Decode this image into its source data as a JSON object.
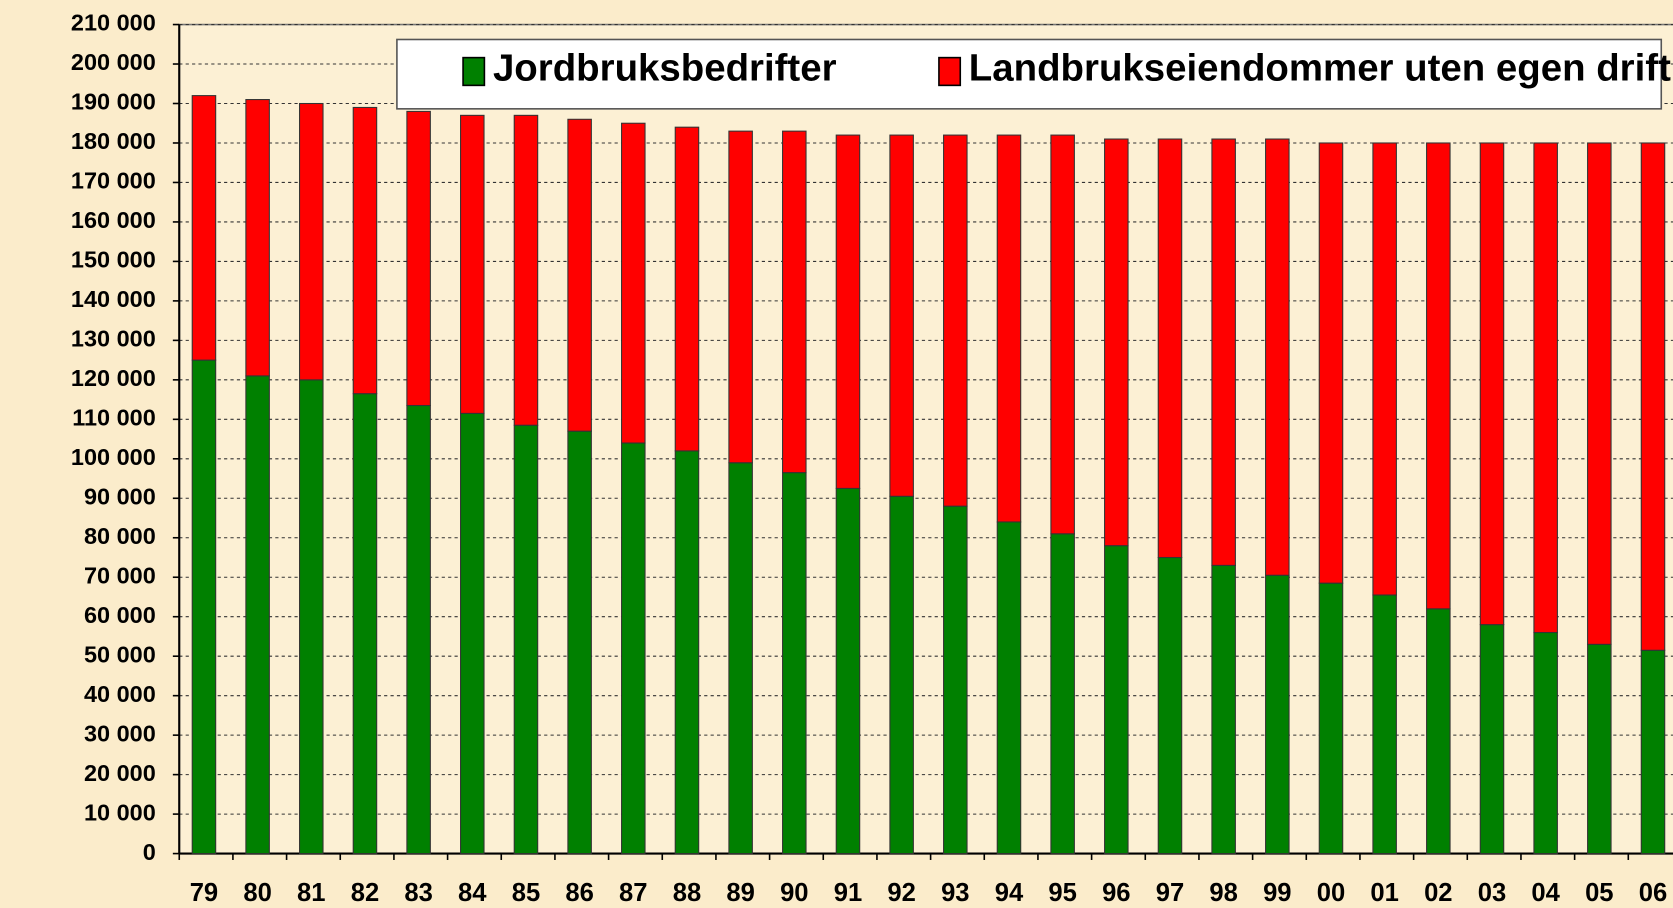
{
  "chart_data": {
    "type": "bar",
    "stacked": true,
    "categories": [
      "79",
      "80",
      "81",
      "82",
      "83",
      "84",
      "85",
      "86",
      "87",
      "88",
      "89",
      "90",
      "91",
      "92",
      "93",
      "94",
      "95",
      "96",
      "97",
      "98",
      "99",
      "00",
      "01",
      "02",
      "03",
      "04",
      "05",
      "06"
    ],
    "series": [
      {
        "name": "Jordbruksbedrifter",
        "color": "#008000",
        "values": [
          125000,
          121000,
          120000,
          116500,
          113500,
          111500,
          108500,
          107000,
          104000,
          102000,
          99000,
          96500,
          92500,
          90500,
          88000,
          84000,
          81000,
          78000,
          75000,
          73000,
          70500,
          68500,
          65500,
          62000,
          58000,
          56000,
          53000,
          51500
        ]
      },
      {
        "name": "Landbrukseiendommer uten egen drift",
        "color": "#ff0000",
        "values": [
          67000,
          70000,
          70000,
          72500,
          74500,
          75500,
          78500,
          79000,
          81000,
          82000,
          84000,
          86500,
          89500,
          91500,
          94000,
          98000,
          101000,
          103000,
          106000,
          108000,
          110500,
          111500,
          114500,
          118000,
          122000,
          124000,
          127000,
          128500
        ]
      }
    ],
    "ylim": [
      0,
      210000
    ],
    "yticks": [
      0,
      {
        "value": 10000,
        "label": "10 000"
      },
      {
        "value": 20000,
        "label": "20 000"
      },
      {
        "value": 30000,
        "label": "30 000"
      },
      {
        "value": 40000,
        "label": "40 000"
      },
      {
        "value": 50000,
        "label": "50 000"
      },
      {
        "value": 60000,
        "label": "60 000"
      },
      {
        "value": 70000,
        "label": "70 000"
      },
      {
        "value": 80000,
        "label": "80 000"
      },
      {
        "value": 90000,
        "label": "90 000"
      },
      {
        "value": 100000,
        "label": "100 000"
      },
      {
        "value": 110000,
        "label": "110 000"
      },
      {
        "value": 120000,
        "label": "120 000"
      },
      {
        "value": 130000,
        "label": "130 000"
      },
      {
        "value": 140000,
        "label": "140 000"
      },
      {
        "value": 150000,
        "label": "150 000"
      },
      {
        "value": 160000,
        "label": "160 000"
      },
      {
        "value": 170000,
        "label": "170 000"
      },
      {
        "value": 180000,
        "label": "180 000"
      },
      {
        "value": 190000,
        "label": "190 000"
      },
      {
        "value": 200000,
        "label": "200 000"
      },
      {
        "value": 210000,
        "label": "210 000"
      }
    ],
    "grid": true,
    "legend": "top"
  }
}
